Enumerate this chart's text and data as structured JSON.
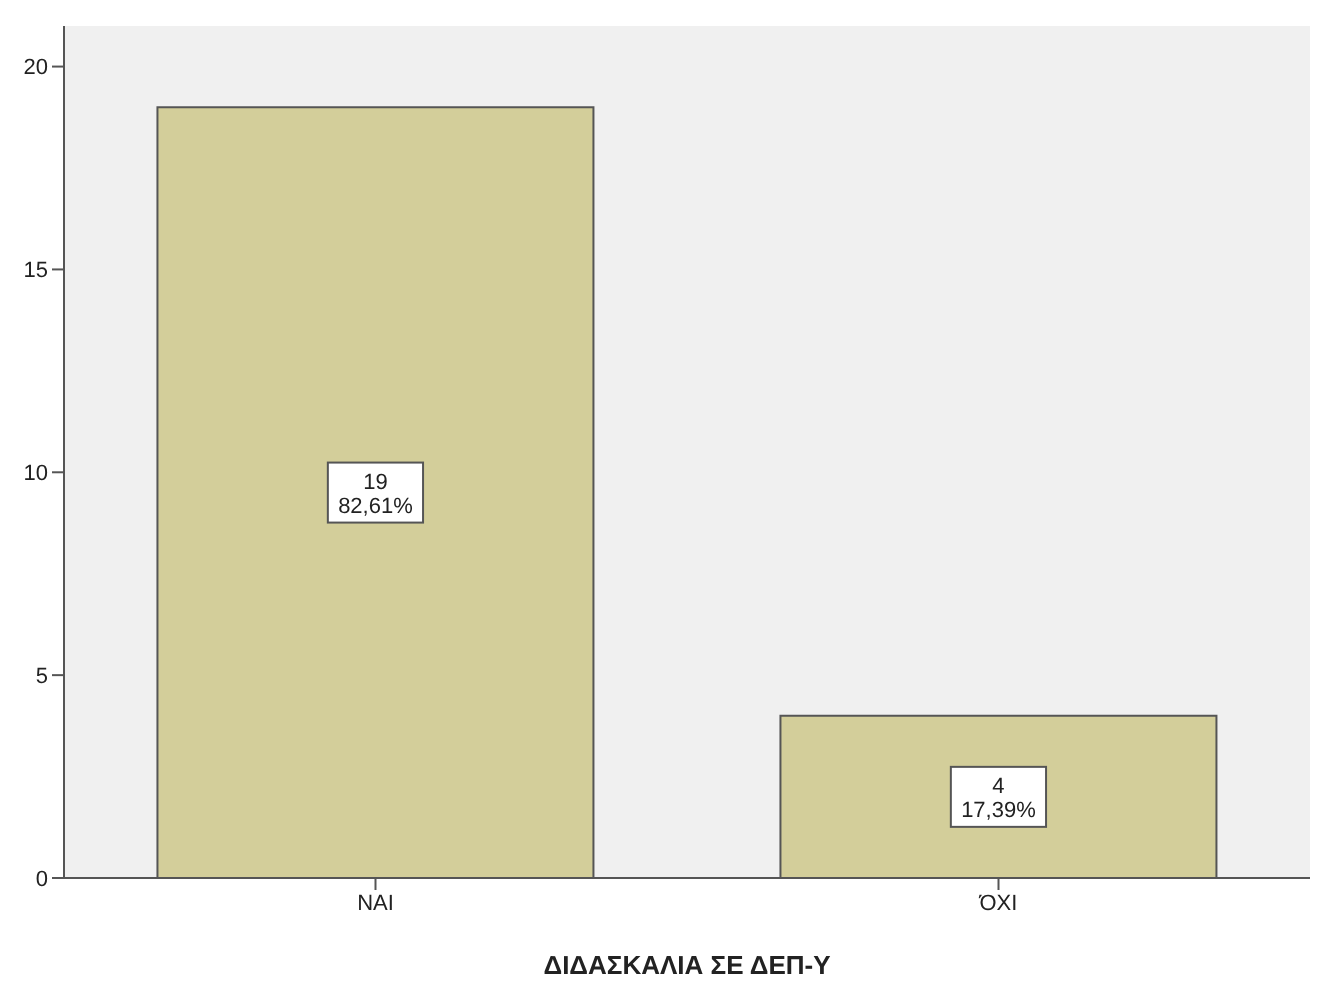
{
  "chart_data": {
    "type": "bar",
    "xlabel": "ΔΙΔΑΣΚΑΛΙΑ ΣΕ ΔΕΠ-Υ",
    "categories": [
      "ΝΑΙ",
      "ΌΧΙ"
    ],
    "values": [
      19,
      4
    ],
    "color": "#d3ce9a",
    "value_labels": [
      "19\n82,61%",
      "4\n17,39%"
    ],
    "ylim": [
      0,
      21
    ],
    "yticks": [
      0,
      5,
      10,
      15,
      20
    ],
    "grid": false,
    "legend": false
  }
}
